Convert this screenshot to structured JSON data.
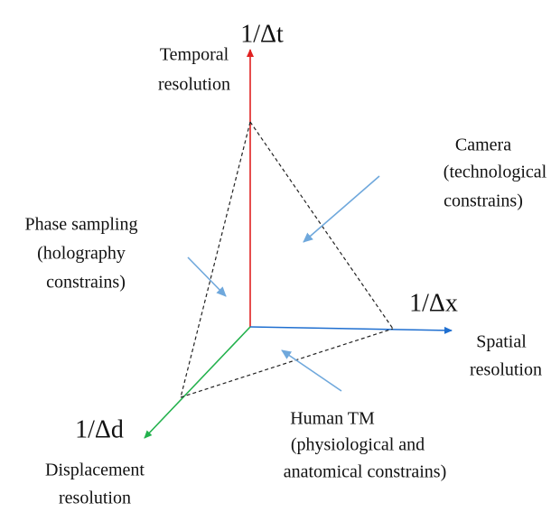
{
  "axes": {
    "temporal": {
      "symbol": "1/Δt",
      "label": [
        "Temporal",
        "resolution"
      ]
    },
    "spatial": {
      "symbol": "1/Δx",
      "label": [
        "Spatial",
        "resolution"
      ]
    },
    "displacement": {
      "symbol": "1/Δd",
      "label": [
        "Displacement",
        "resolution"
      ]
    }
  },
  "constraints": {
    "camera": [
      "Camera",
      "(technological",
      "constrains)"
    ],
    "phase": [
      "Phase sampling",
      "(holography",
      "constrains)"
    ],
    "human": [
      "Human TM",
      "(physiological and",
      "anatomical constrains)"
    ]
  }
}
